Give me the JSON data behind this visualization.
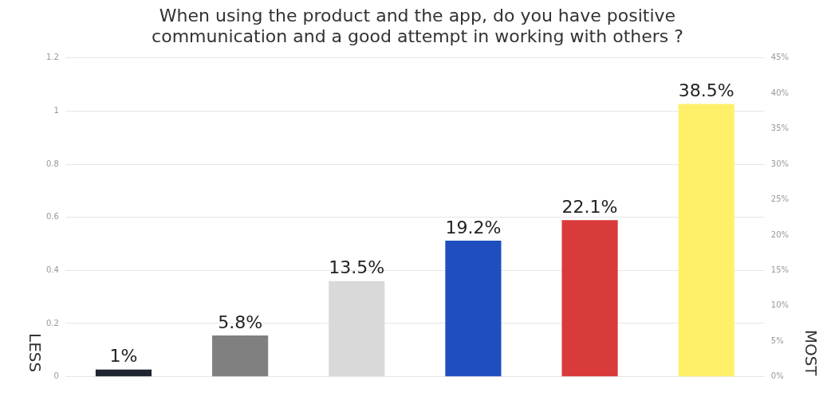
{
  "chart_data": {
    "type": "bar",
    "title": "When using the product and the app, do you have positive communication and a good attempt in working with others ?",
    "categories": [
      null,
      null,
      null,
      null,
      null,
      null
    ],
    "series": [
      {
        "axis": "y2",
        "colors": [
          "#1f2530",
          "#808080",
          "#d9d9d9",
          "#1f4fbf",
          "#d93a3a",
          "#fff06a"
        ],
        "values": [
          1,
          5.8,
          13.5,
          19.2,
          22.1,
          38.5
        ],
        "value_labels": [
          "1%",
          "5.8%",
          "13.5%",
          "19.2%",
          "22.1%",
          "38.5%"
        ]
      }
    ],
    "ylim": [
      0,
      1.2
    ],
    "yticks": [
      0,
      0.2,
      0.4,
      0.6,
      0.8,
      1,
      1.2
    ],
    "y2lim": [
      0,
      45
    ],
    "y2ticks": [
      {
        "value": 0,
        "label": "0%"
      },
      {
        "value": 5,
        "label": "5%"
      },
      {
        "value": 10,
        "label": "10%"
      },
      {
        "value": 15,
        "label": "15%"
      },
      {
        "value": 20,
        "label": "20%"
      },
      {
        "value": 25,
        "label": "25%"
      },
      {
        "value": 30,
        "label": "30%"
      },
      {
        "value": 35,
        "label": "35%"
      },
      {
        "value": 40,
        "label": "40%"
      },
      {
        "value": 45,
        "label": "45%"
      }
    ],
    "grid": "y",
    "legend": false,
    "annotations": [
      "LESS",
      "MOST"
    ]
  }
}
